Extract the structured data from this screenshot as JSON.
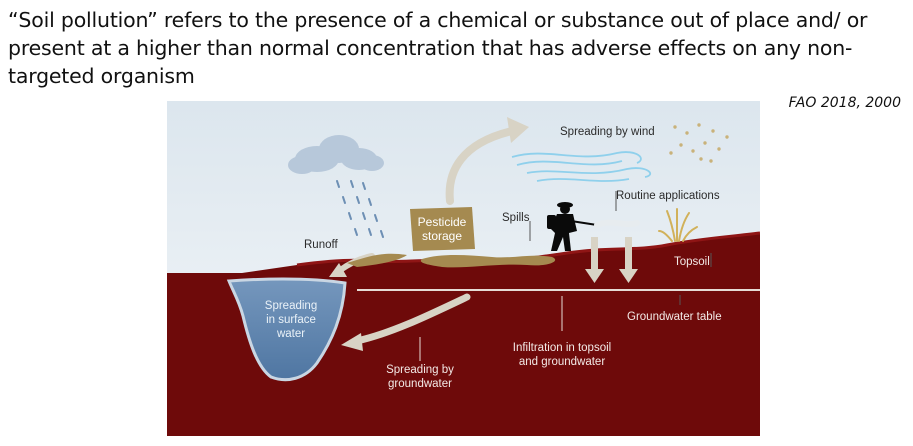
{
  "headline": {
    "line1": "“Soil pollution” refers to the presence of a chemical or substance out of place and/ or",
    "line2": "present at a higher than normal concentration that has adverse effects on any non-",
    "line3": "targeted organism"
  },
  "citation": "FAO 2018, 2000",
  "diagram": {
    "labels": {
      "spreading_by_wind": "Spreading by wind",
      "routine_applications": "Routine applications",
      "spills": "Spills",
      "pesticide_line1": "Pesticide",
      "pesticide_line2": "storage",
      "runoff": "Runoff",
      "topsoil": "Topsoil",
      "groundwater_table": "Groundwater table",
      "infiltration_line1": "Infiltration in topsoil",
      "infiltration_line2": "and groundwater",
      "spreading_groundwater_line1": "Spreading by",
      "spreading_groundwater_line2": "groundwater",
      "surface_water_line1": "Spreading",
      "surface_water_line2": "in surface",
      "surface_water_line3": "water"
    },
    "colors": {
      "sky": "#e9eff4",
      "soil": "#6e0a0a",
      "soil_edge": "#8a1212",
      "water": "#5f86b1",
      "storage": "#a58a50",
      "arrow": "#d8d3c5",
      "wind": "#8fd0ec",
      "cloud": "#b7c8da",
      "rain": "#6d8fb4"
    }
  }
}
